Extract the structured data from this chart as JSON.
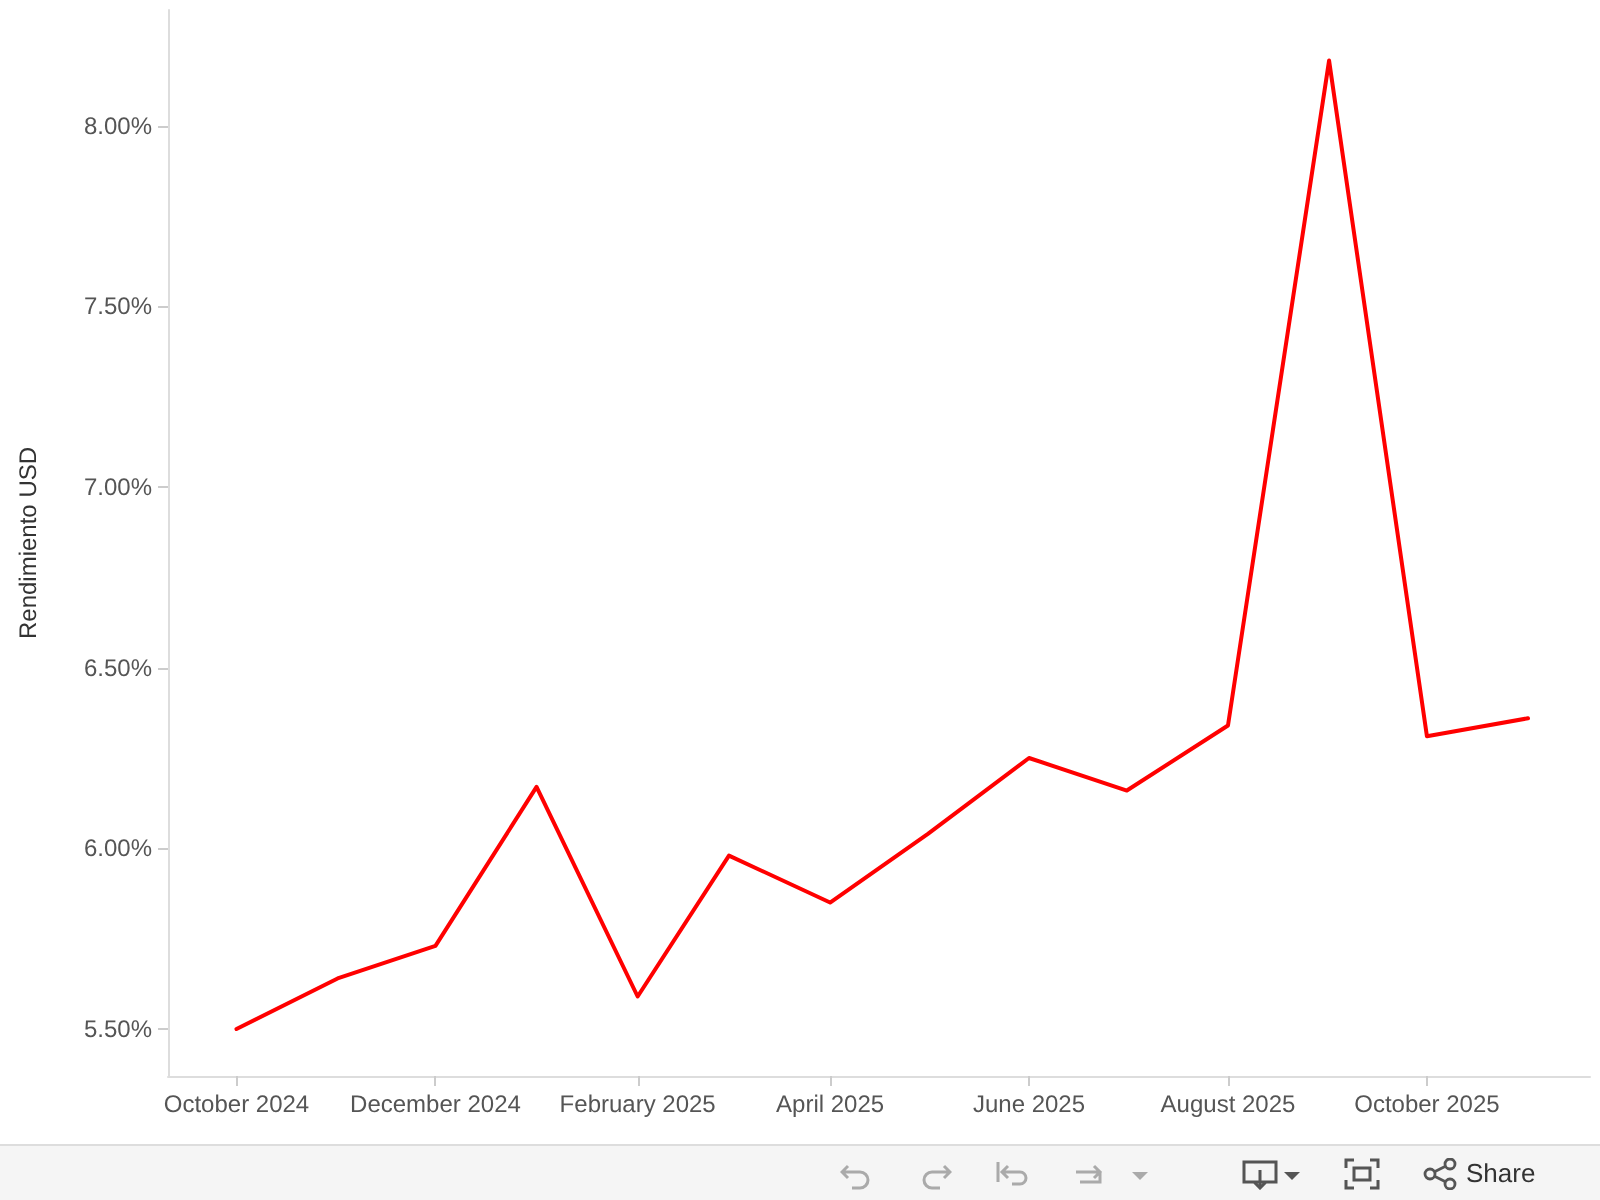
{
  "chart_data": {
    "type": "line",
    "ylabel": "Rendimiento USD",
    "x": [
      "2024-10",
      "2024-11",
      "2024-12",
      "2025-01",
      "2025-02",
      "2025-03",
      "2025-04",
      "2025-05",
      "2025-06",
      "2025-07",
      "2025-08",
      "2025-09",
      "2025-10",
      "2025-11"
    ],
    "series": [
      {
        "color": "#ff0000",
        "values": [
          5.5,
          5.64,
          5.73,
          6.17,
          5.59,
          5.98,
          5.85,
          6.04,
          6.25,
          6.16,
          6.34,
          8.18,
          6.31,
          6.36
        ]
      }
    ],
    "xlim": [
      "2024-09-10",
      "2025-11-20"
    ],
    "xticks": [
      {
        "value": "2024-10",
        "label": "October 2024"
      },
      {
        "value": "2024-12",
        "label": "December 2024"
      },
      {
        "value": "2025-02",
        "label": "February 2025"
      },
      {
        "value": "2025-04",
        "label": "April 2025"
      },
      {
        "value": "2025-06",
        "label": "June 2025"
      },
      {
        "value": "2025-08",
        "label": "August 2025"
      },
      {
        "value": "2025-10",
        "label": "October 2025"
      }
    ],
    "ylim": [
      5.37,
      8.32
    ],
    "yticks": [
      {
        "value": 5.5,
        "label": "5.50%"
      },
      {
        "value": 6.0,
        "label": "6.00%"
      },
      {
        "value": 6.5,
        "label": "6.50%"
      },
      {
        "value": 7.0,
        "label": "7.00%"
      },
      {
        "value": 7.5,
        "label": "7.50%"
      },
      {
        "value": 8.0,
        "label": "8.00%"
      }
    ],
    "grid": false,
    "marker": "none",
    "line_style": "solid",
    "annotations": [
      "Share"
    ]
  }
}
